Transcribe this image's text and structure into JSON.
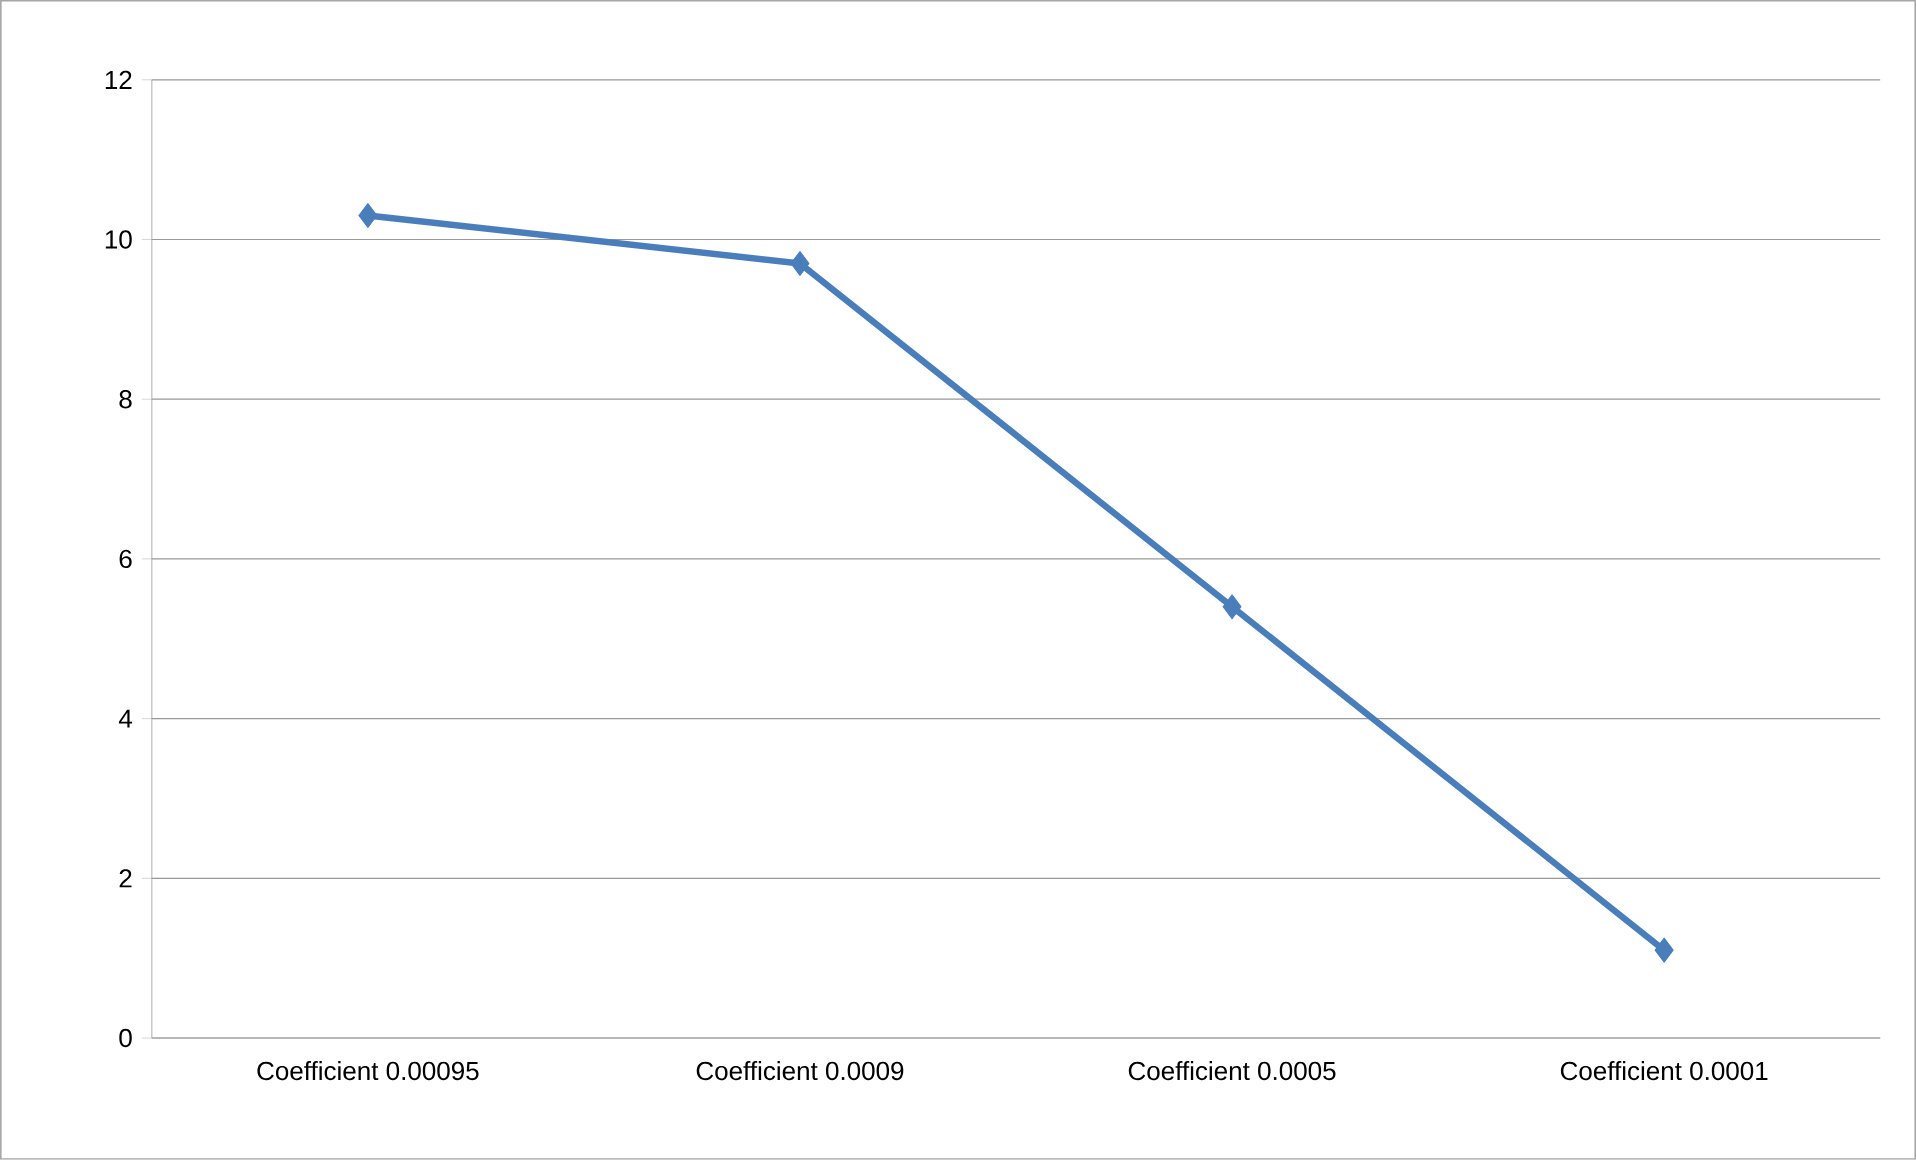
{
  "chart_data": {
    "type": "line",
    "categories": [
      "Coefficient 0.00095",
      "Coefficient 0.0009",
      "Coefficient 0.0005",
      "Coefficient 0.0001"
    ],
    "series": [
      {
        "color": "#4a7ebb",
        "values": [
          10.3,
          9.7,
          5.4,
          1.1
        ]
      }
    ],
    "ylim": [
      0,
      12
    ],
    "yticks": [
      0,
      2,
      4,
      6,
      8,
      10,
      12
    ],
    "grid": "y",
    "marker": "diamond",
    "line_style": "solid"
  }
}
